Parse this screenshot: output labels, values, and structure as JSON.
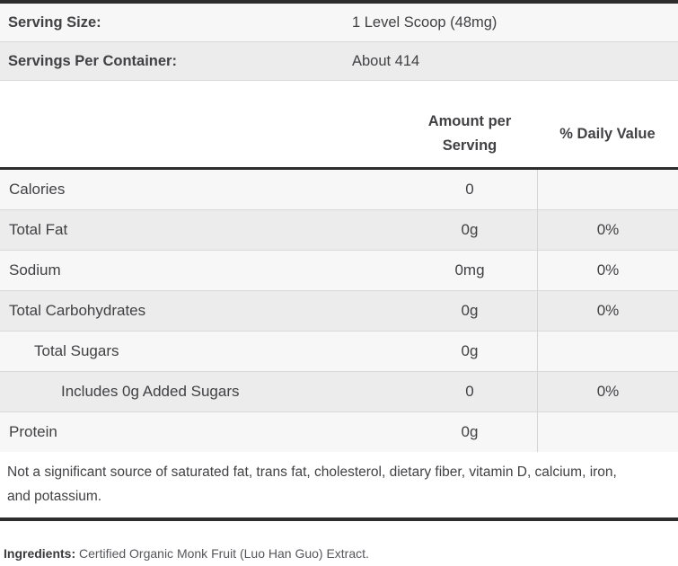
{
  "colors": {
    "dark-border": "#2d2d2d",
    "line": "#d9d9d9",
    "row-light": "#f7f7f7",
    "row-dark": "#ececec",
    "text": "#414144"
  },
  "serving_info": {
    "rows": [
      {
        "label": "Serving Size:",
        "value": "1 Level Scoop (48mg)"
      },
      {
        "label": "Servings Per Container:",
        "value": "About 414"
      }
    ]
  },
  "nutrition_table": {
    "header": {
      "amount_col": "Amount per Serving",
      "daily_value_col": "% Daily Value"
    },
    "rows": [
      {
        "label": "Calories",
        "amount": "0",
        "daily_value": "",
        "indent": 0
      },
      {
        "label": "Total Fat",
        "amount": "0g",
        "daily_value": "0%",
        "indent": 0
      },
      {
        "label": "Sodium",
        "amount": "0mg",
        "daily_value": "0%",
        "indent": 0
      },
      {
        "label": "Total Carbohydrates",
        "amount": "0g",
        "daily_value": "0%",
        "indent": 0
      },
      {
        "label": "Total Sugars",
        "amount": "0g",
        "daily_value": "",
        "indent": 1
      },
      {
        "label": "Includes 0g Added Sugars",
        "amount": "0",
        "daily_value": "0%",
        "indent": 2
      },
      {
        "label": "Protein",
        "amount": "0g",
        "daily_value": "",
        "indent": 0
      }
    ],
    "footnote": "Not a significant source of saturated fat, trans fat, cholesterol, dietary fiber, vitamin D, calcium, iron, and potassium."
  },
  "ingredients": {
    "label": "Ingredients:",
    "text": "Certified Organic Monk Fruit (Luo Han Guo) Extract."
  }
}
